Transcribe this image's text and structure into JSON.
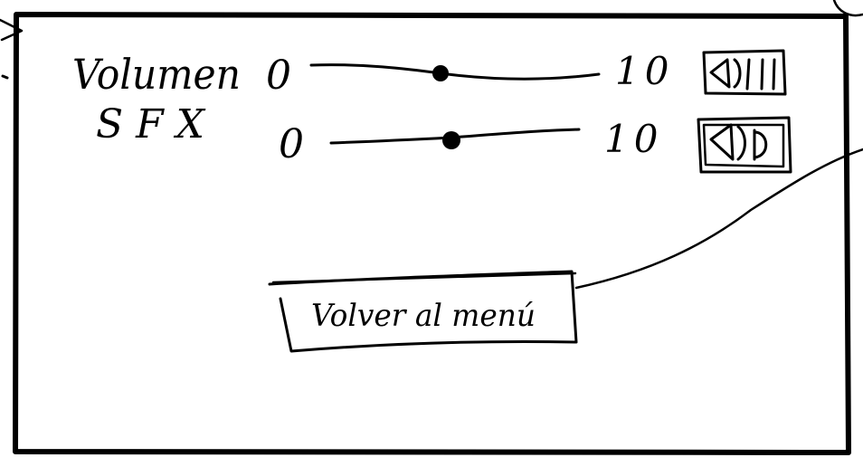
{
  "settings": {
    "volume": {
      "label": "Volumen",
      "min_label": "0",
      "max_label": "10",
      "min": 0,
      "max": 10,
      "value": 5,
      "icon": "speaker-icon"
    },
    "sfx": {
      "label": "SFX",
      "min_label": "0",
      "max_label": "10",
      "min": 0,
      "max": 10,
      "value": 5,
      "icon": "speaker-icon"
    }
  },
  "back_button": {
    "label": "Volver al menú"
  },
  "colors": {
    "ink": "#000000",
    "paper": "#ffffff"
  }
}
